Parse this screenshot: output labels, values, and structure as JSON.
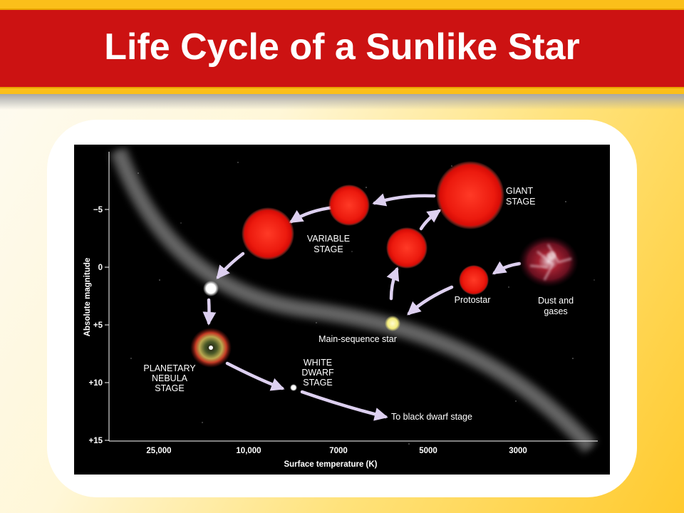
{
  "slide": {
    "title": "Life Cycle of a Sunlike Star"
  },
  "diagram": {
    "y_axis": {
      "label": "Absolute magnitude",
      "ticks": [
        "−5",
        "0",
        "+5",
        "+10",
        "+15"
      ]
    },
    "x_axis": {
      "label": "Surface temperature (K)",
      "ticks": [
        "25,000",
        "10,000",
        "7000",
        "5000",
        "3000"
      ]
    },
    "labels": {
      "giant_stage": [
        "GIANT",
        "STAGE"
      ],
      "variable_stage": [
        "VARIABLE",
        "STAGE"
      ],
      "protostar": [
        "Protostar"
      ],
      "dust_and_gases": [
        "Dust and",
        "gases"
      ],
      "main_sequence_star": [
        "Main-sequence star"
      ],
      "planetary_nebula_stage": [
        "PLANETARY",
        "NEBULA",
        "STAGE"
      ],
      "white_dwarf_stage": [
        "WHITE",
        "DWARF",
        "STAGE"
      ],
      "to_black_dwarf_stage": [
        "To black dwarf stage"
      ]
    },
    "colors": {
      "star_red": "#e81c10",
      "main_sequence": "#f4f08a",
      "arrow": "#ddd0f0",
      "band": "#8c8c8c"
    }
  }
}
